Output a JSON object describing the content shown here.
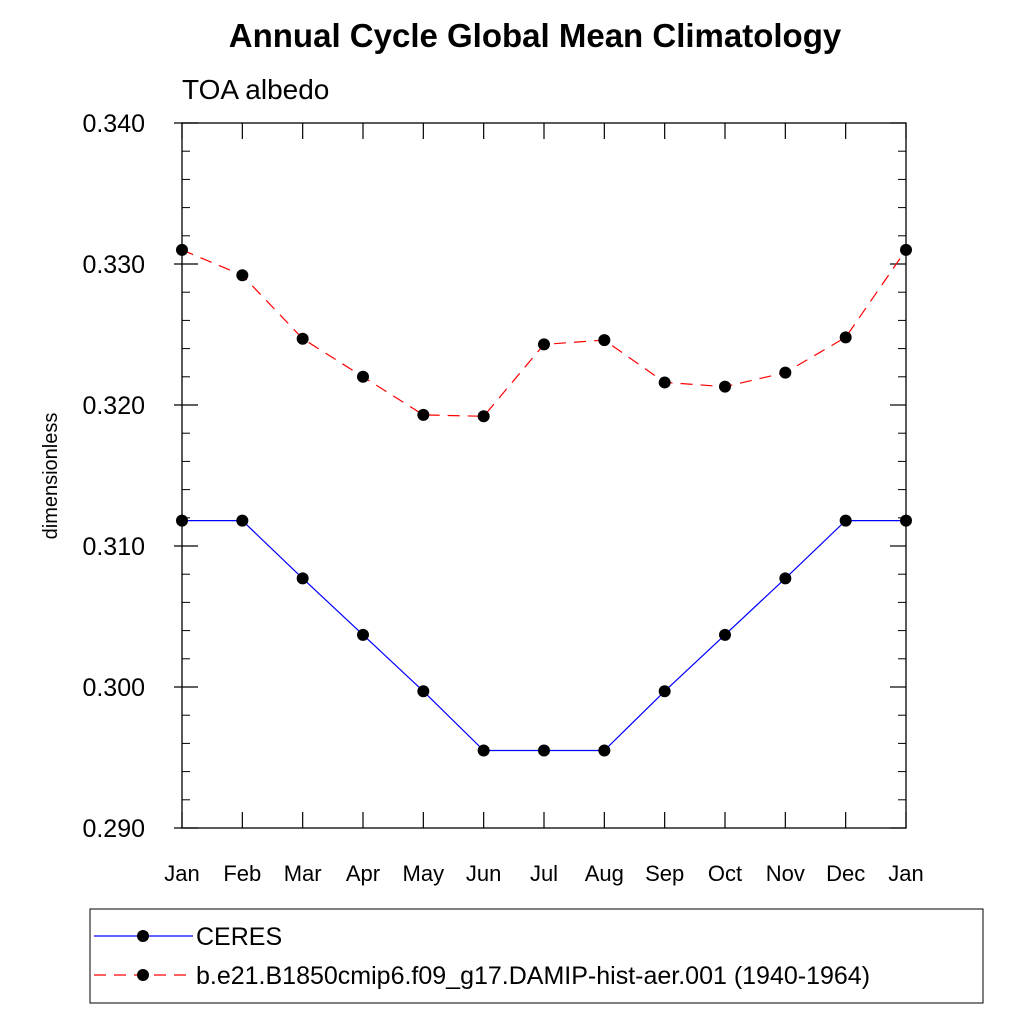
{
  "chart_data": {
    "type": "line",
    "title": "Annual Cycle Global Mean Climatology",
    "subtitle": "TOA albedo",
    "xlabel": "",
    "ylabel": "dimensionless",
    "categories": [
      "Jan",
      "Feb",
      "Mar",
      "Apr",
      "May",
      "Jun",
      "Jul",
      "Aug",
      "Sep",
      "Oct",
      "Nov",
      "Dec",
      "Jan"
    ],
    "ylim": [
      0.29,
      0.34
    ],
    "yticks": [
      "0.290",
      "0.300",
      "0.310",
      "0.320",
      "0.330",
      "0.340"
    ],
    "grid": false,
    "legend_position": "bottom",
    "series": [
      {
        "name": "CERES",
        "color": "#0000ff",
        "line_style": "solid",
        "marker": "filled-circle",
        "values": [
          0.3118,
          0.3118,
          0.3077,
          0.3037,
          0.2997,
          0.2955,
          0.2955,
          0.2955,
          0.2997,
          0.3037,
          0.3077,
          0.3118,
          0.3118
        ]
      },
      {
        "name": "b.e21.B1850cmip6.f09_g17.DAMIP-hist-aer.001 (1940-1964)",
        "color": "#ff0000",
        "line_style": "dashed",
        "marker": "filled-circle",
        "values": [
          0.331,
          0.3292,
          0.3247,
          0.322,
          0.3193,
          0.3192,
          0.3243,
          0.3246,
          0.3216,
          0.3213,
          0.3223,
          0.3248,
          0.331
        ]
      }
    ]
  }
}
